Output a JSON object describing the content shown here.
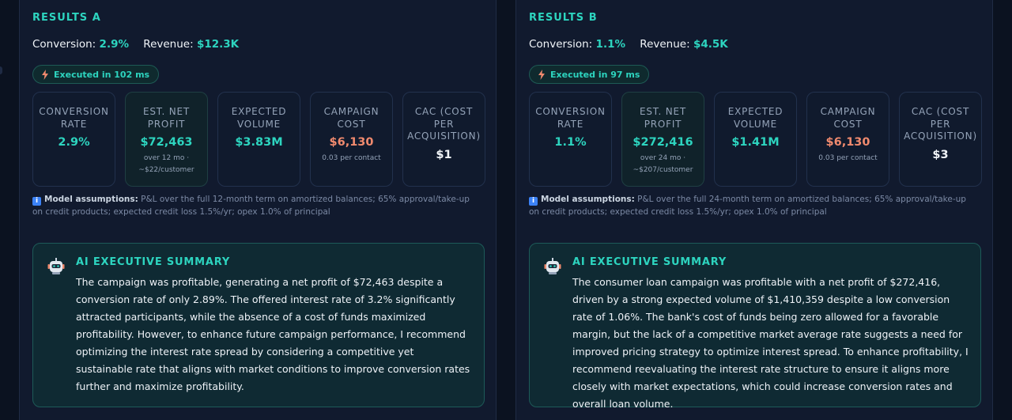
{
  "results": [
    {
      "title": "RESULTS A",
      "conversion_label": "Conversion:",
      "conversion": "2.9%",
      "revenue_label": "Revenue:",
      "revenue": "$12.3K",
      "exec_badge": "Executed in 102 ms",
      "cards": [
        {
          "label": "CONVERSION RATE",
          "value": "2.9%",
          "sub1": "",
          "sub2": ""
        },
        {
          "label": "EST. NET PROFIT",
          "value": "$72,463",
          "sub1": "over 12 mo ·",
          "sub2": "~$22/customer"
        },
        {
          "label": "EXPECTED VOLUME",
          "value": "$3.83M",
          "sub1": "",
          "sub2": ""
        },
        {
          "label": "CAMPAIGN COST",
          "value": "$6,130",
          "sub1": "0.03 per contact",
          "sub2": ""
        },
        {
          "label": "CAC (COST PER ACQUISITION)",
          "value": "$1",
          "sub1": "",
          "sub2": ""
        }
      ],
      "assumptions_head": "Model assumptions:",
      "assumptions_text": " P&L over the full 12-month term on amortized balances; 65% approval/take-up on credit products; expected credit loss 1.5%/yr; opex 1.0% of principal",
      "summary_title": "AI EXECUTIVE SUMMARY",
      "summary_text": "The campaign was profitable, generating a net profit of $72,463 despite a conversion rate of only 2.89%. The offered interest rate of 3.2% significantly attracted participants, while the absence of a cost of funds maximized profitability. However, to enhance future campaign performance, I recommend optimizing the interest rate spread by considering a competitive yet sustainable rate that aligns with market conditions to improve conversion rates further and maximize profitability."
    },
    {
      "title": "RESULTS B",
      "conversion_label": "Conversion:",
      "conversion": "1.1%",
      "revenue_label": "Revenue:",
      "revenue": "$4.5K",
      "exec_badge": "Executed in 97 ms",
      "cards": [
        {
          "label": "CONVERSION RATE",
          "value": "1.1%",
          "sub1": "",
          "sub2": ""
        },
        {
          "label": "EST. NET PROFIT",
          "value": "$272,416",
          "sub1": "over 24 mo ·",
          "sub2": "~$207/customer"
        },
        {
          "label": "EXPECTED VOLUME",
          "value": "$1.41M",
          "sub1": "",
          "sub2": ""
        },
        {
          "label": "CAMPAIGN COST",
          "value": "$6,130",
          "sub1": "0.03 per contact",
          "sub2": ""
        },
        {
          "label": "CAC (COST PER ACQUISITION)",
          "value": "$3",
          "sub1": "",
          "sub2": ""
        }
      ],
      "assumptions_head": "Model assumptions:",
      "assumptions_text": " P&L over the full 24-month term on amortized balances; 65% approval/take-up on credit products; expected credit loss 1.5%/yr; opex 1.0% of principal",
      "summary_title": "AI EXECUTIVE SUMMARY",
      "summary_text": "The consumer loan campaign was profitable with a net profit of $272,416, driven by a strong expected volume of $1,410,359 despite a low conversion rate of 1.06%. The bank's cost of funds being zero allowed for a favorable margin, but the lack of a competitive market average rate suggests a need for improved pricing strategy to optimize interest spread. To enhance profitability, I recommend reevaluating the interest rate structure to ensure it aligns more closely with market expectations, which could increase conversion rates and overall loan volume."
    }
  ],
  "colors": {
    "accent": "#2dd4bf",
    "cost": "#f08a6e",
    "background": "#0b1220",
    "panel": "#111a2e"
  },
  "icons": {
    "exec_badge": "bolt-icon",
    "assumptions": "info-icon",
    "summary": "robot-icon"
  }
}
